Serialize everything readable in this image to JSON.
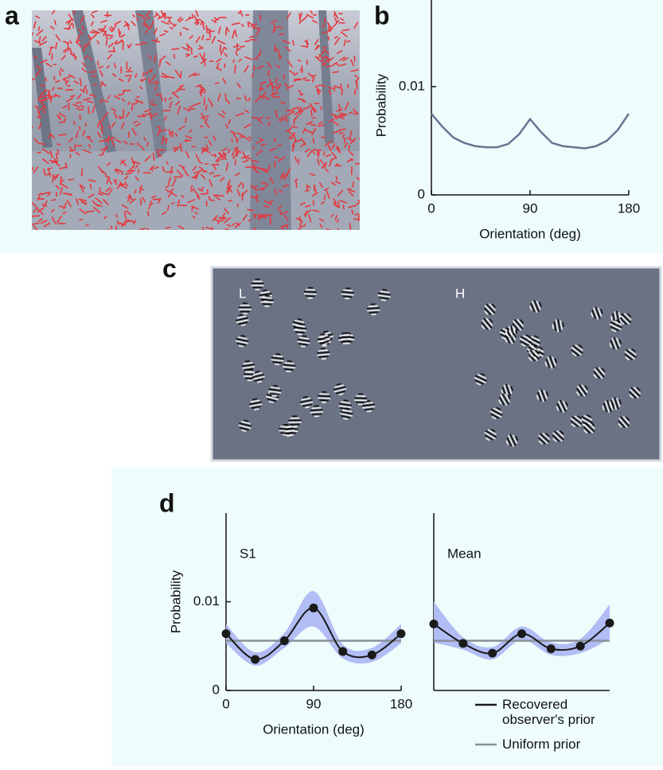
{
  "panel_labels": [
    "a",
    "b",
    "c",
    "d"
  ],
  "stimulus_labels": [
    "L",
    "H"
  ],
  "chart_data": [
    {
      "type": "line",
      "ylabel": "Probability",
      "xlabel": "Orientation (deg)",
      "x": [
        0,
        10,
        20,
        30,
        40,
        50,
        60,
        70,
        80,
        90,
        100,
        110,
        120,
        130,
        140,
        150,
        160,
        170,
        180
      ],
      "series": [
        {
          "color": "#6b7390",
          "smooth": false,
          "values": [
            0.0075,
            0.0063,
            0.0053,
            0.0048,
            0.0045,
            0.0044,
            0.0044,
            0.0047,
            0.0056,
            0.007,
            0.0058,
            0.0048,
            0.0045,
            0.0044,
            0.0043,
            0.0045,
            0.005,
            0.006,
            0.0075
          ]
        }
      ],
      "xlim": [
        0,
        180
      ],
      "ylim": [
        0,
        0.018
      ],
      "xticks": [
        0,
        90,
        180
      ],
      "yticks": [
        0,
        0.01
      ]
    },
    {
      "type": "line",
      "title": "S1",
      "ylabel": "Probability",
      "xlabel": "Orientation (deg)",
      "x": [
        0,
        30,
        60,
        90,
        120,
        150,
        180
      ],
      "band": {
        "color": "#b1bdf4",
        "lower": [
          0.0053,
          0.0028,
          0.0048,
          0.0072,
          0.0036,
          0.0032,
          0.0053
        ],
        "upper": [
          0.0075,
          0.0043,
          0.0065,
          0.0112,
          0.0052,
          0.0048,
          0.0075
        ]
      },
      "series": [
        {
          "color": "#8a8f99",
          "smooth": false,
          "values": [
            0.0056,
            0.0056,
            0.0056,
            0.0056,
            0.0056,
            0.0056,
            0.0056
          ]
        },
        {
          "color": "#1a1a1a",
          "smooth": true,
          "markers": true,
          "values": [
            0.0064,
            0.0035,
            0.0056,
            0.0093,
            0.0044,
            0.004,
            0.0064
          ]
        }
      ],
      "xlim": [
        0,
        180
      ],
      "ylim": [
        0,
        0.02
      ],
      "xticks": [
        0,
        90,
        180
      ],
      "yticks": [
        0,
        0.01
      ]
    },
    {
      "type": "line",
      "title": "Mean",
      "x": [
        0,
        30,
        60,
        90,
        120,
        150,
        180
      ],
      "band": {
        "color": "#b1bdf4",
        "lower": [
          0.0054,
          0.0046,
          0.0035,
          0.0057,
          0.004,
          0.0042,
          0.0058
        ],
        "upper": [
          0.01,
          0.006,
          0.0049,
          0.0072,
          0.0054,
          0.0058,
          0.0097
        ]
      },
      "series": [
        {
          "name": "Uniform prior",
          "color": "#8a8f99",
          "smooth": false,
          "values": [
            0.0056,
            0.0056,
            0.0056,
            0.0056,
            0.0056,
            0.0056,
            0.0056
          ]
        },
        {
          "name": "Recovered observer's prior",
          "color": "#1a1a1a",
          "smooth": true,
          "markers": true,
          "values": [
            0.0075,
            0.0053,
            0.0042,
            0.0064,
            0.0047,
            0.005,
            0.0076
          ]
        }
      ],
      "xlim": [
        0,
        180
      ],
      "ylim": [
        0,
        0.02
      ]
    }
  ]
}
